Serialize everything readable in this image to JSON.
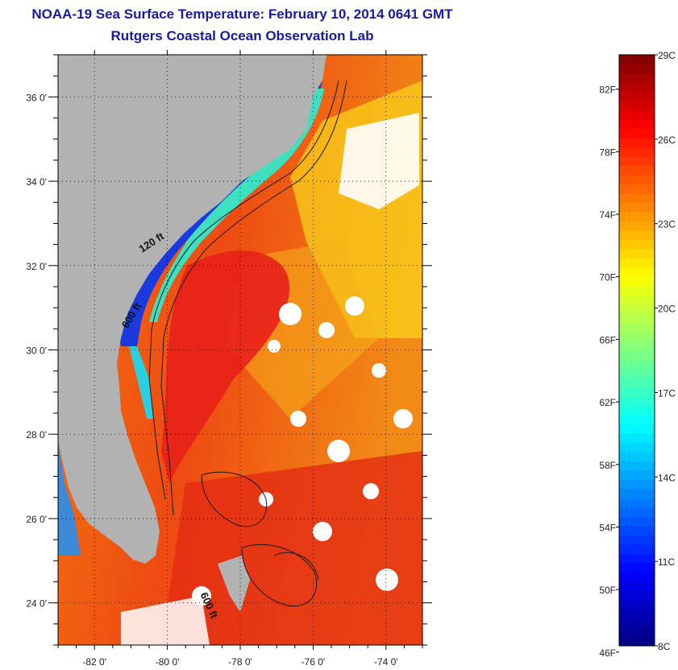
{
  "header": {
    "title": "NOAA-19 Sea Surface Temperature:  February 10, 2014 0641 GMT",
    "subtitle": "Rutgers Coastal Ocean Observation Lab"
  },
  "map": {
    "lon_range": [
      -83,
      -73
    ],
    "lat_range": [
      23,
      37
    ],
    "lon_ticks": [
      {
        "value": -82,
        "label": "-82 0'"
      },
      {
        "value": -80,
        "label": "-80 0'"
      },
      {
        "value": -78,
        "label": "-78 0'"
      },
      {
        "value": -76,
        "label": "-76 0'"
      },
      {
        "value": -74,
        "label": "-74 0'"
      }
    ],
    "lat_ticks": [
      {
        "value": 24,
        "label": "24 0'"
      },
      {
        "value": 26,
        "label": "26 0'"
      },
      {
        "value": 28,
        "label": "28 0'"
      },
      {
        "value": 30,
        "label": "30 0'"
      },
      {
        "value": 32,
        "label": "32 0'"
      },
      {
        "value": 34,
        "label": "34 0'"
      },
      {
        "value": 36,
        "label": "36 0'"
      }
    ],
    "contour_labels": [
      {
        "text": "120 ft",
        "lon": -80.7,
        "lat": 32.3,
        "angle": -33
      },
      {
        "text": "600 ft",
        "lon": -81.1,
        "lat": 30.5,
        "angle": -58
      },
      {
        "text": "600 ft",
        "lon": -79.1,
        "lat": 24.2,
        "angle": 65
      }
    ],
    "land_color": "#b2b2b2",
    "gridlines": "dotted"
  },
  "colorbar": {
    "range_c": [
      8,
      29
    ],
    "celsius_labels": [
      "29C",
      "26C",
      "23C",
      "20C",
      "17C",
      "14C",
      "11C",
      "8C"
    ],
    "fahrenheit_labels": [
      "82F",
      "78F",
      "74F",
      "70F",
      "66F",
      "62F",
      "58F",
      "54F",
      "50F",
      "46F"
    ]
  }
}
